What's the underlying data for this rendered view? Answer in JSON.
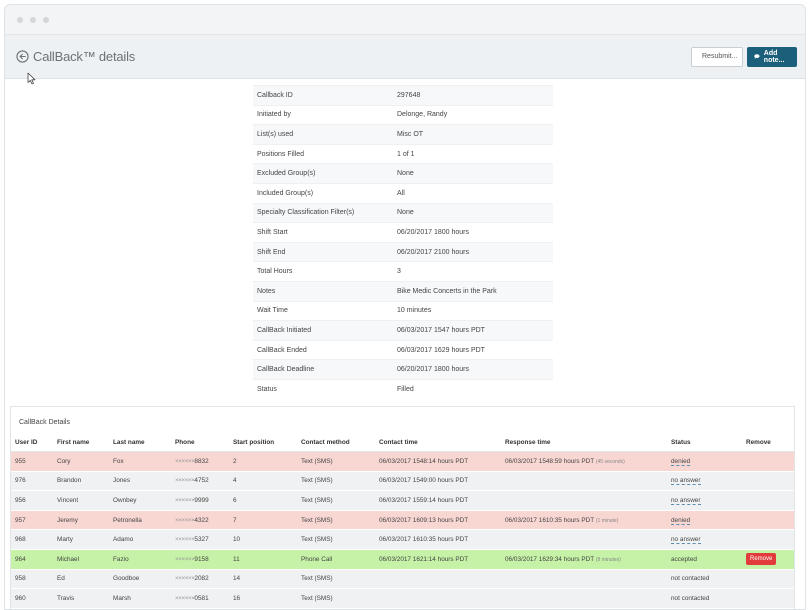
{
  "header": {
    "title": "CallBack™ details",
    "resubmit_label": "Resubmit...",
    "add_note_label": "Add note..."
  },
  "details": [
    {
      "label": "Callback ID",
      "value": "297648"
    },
    {
      "label": "Initiated by",
      "value": "Delonge, Randy"
    },
    {
      "label": "List(s) used",
      "value": "Misc OT"
    },
    {
      "label": "Positions Filled",
      "value": "1 of 1"
    },
    {
      "label": "Excluded Group(s)",
      "value": "None"
    },
    {
      "label": "Included Group(s)",
      "value": "All"
    },
    {
      "label": "Specialty Classification Filter(s)",
      "value": "None"
    },
    {
      "label": "Shift Start",
      "value": "06/20/2017 1800 hours"
    },
    {
      "label": "Shift End",
      "value": "06/20/2017 2100 hours"
    },
    {
      "label": "Total Hours",
      "value": "3"
    },
    {
      "label": "Notes",
      "value": "Bike Medic Concerts in the Park"
    },
    {
      "label": "Wait Time",
      "value": "10 minutes"
    },
    {
      "label": "CallBack Initiated",
      "value": "06/03/2017 1547 hours PDT"
    },
    {
      "label": "CallBack Ended",
      "value": "06/03/2017 1629 hours PDT"
    },
    {
      "label": "CallBack Deadline",
      "value": "06/20/2017 1800 hours"
    },
    {
      "label": "Status",
      "value": "Filled"
    }
  ],
  "callback_details": {
    "title": "CallBack Details",
    "columns": [
      "User ID",
      "First name",
      "Last name",
      "Phone",
      "Start position",
      "Contact method",
      "Contact time",
      "Response time",
      "Status",
      "Remove"
    ],
    "rows": [
      {
        "user_id": "955",
        "first": "Cory",
        "last": "Fox",
        "phone_mask": "××××××",
        "phone_last": "8832",
        "start": "2",
        "method": "Text (SMS)",
        "contact_time": "06/03/2017 1548:14 hours PDT",
        "response_time": "06/03/2017 1548:59 hours PDT",
        "response_note": "(45 seconds)",
        "status": "denied",
        "remove": "",
        "tone": "red"
      },
      {
        "user_id": "976",
        "first": "Brandon",
        "last": "Jones",
        "phone_mask": "××××××",
        "phone_last": "4752",
        "start": "4",
        "method": "Text (SMS)",
        "contact_time": "06/03/2017 1549:00 hours PDT",
        "response_time": "",
        "response_note": "",
        "status": "no answer",
        "remove": "",
        "tone": "grey"
      },
      {
        "user_id": "956",
        "first": "Vincent",
        "last": "Ownbey",
        "phone_mask": "××××××",
        "phone_last": "9999",
        "start": "6",
        "method": "Text (SMS)",
        "contact_time": "06/03/2017 1559:14 hours PDT",
        "response_time": "",
        "response_note": "",
        "status": "no answer",
        "remove": "",
        "tone": "grey"
      },
      {
        "user_id": "957",
        "first": "Jeremy",
        "last": "Petronella",
        "phone_mask": "××××××",
        "phone_last": "4322",
        "start": "7",
        "method": "Text (SMS)",
        "contact_time": "06/03/2017 1609:13 hours PDT",
        "response_time": "06/03/2017 1610:35 hours PDT",
        "response_note": "(1 minute)",
        "status": "denied",
        "remove": "",
        "tone": "red"
      },
      {
        "user_id": "968",
        "first": "Marty",
        "last": "Adamo",
        "phone_mask": "××××××",
        "phone_last": "5327",
        "start": "10",
        "method": "Text (SMS)",
        "contact_time": "06/03/2017 1610:35 hours PDT",
        "response_time": "",
        "response_note": "",
        "status": "no answer",
        "remove": "",
        "tone": "grey"
      },
      {
        "user_id": "964",
        "first": "Michael",
        "last": "Fazio",
        "phone_mask": "××××××",
        "phone_last": "9158",
        "start": "11",
        "method": "Phone Call",
        "contact_time": "06/03/2017 1621:14 hours PDT",
        "response_time": "06/03/2017 1629:34 hours PDT",
        "response_note": "(8 minutes)",
        "status": "accepted",
        "remove": "Remove",
        "tone": "green"
      },
      {
        "user_id": "958",
        "first": "Ed",
        "last": "Goodboe",
        "phone_mask": "××××××",
        "phone_last": "2082",
        "start": "14",
        "method": "Text (SMS)",
        "contact_time": "",
        "response_time": "",
        "response_note": "",
        "status": "not contacted",
        "remove": "",
        "tone": "grey"
      },
      {
        "user_id": "960",
        "first": "Travis",
        "last": "Marsh",
        "phone_mask": "××××××",
        "phone_last": "0581",
        "start": "16",
        "method": "Text (SMS)",
        "contact_time": "",
        "response_time": "",
        "response_note": "",
        "status": "not contacted",
        "remove": "",
        "tone": "grey"
      }
    ]
  }
}
